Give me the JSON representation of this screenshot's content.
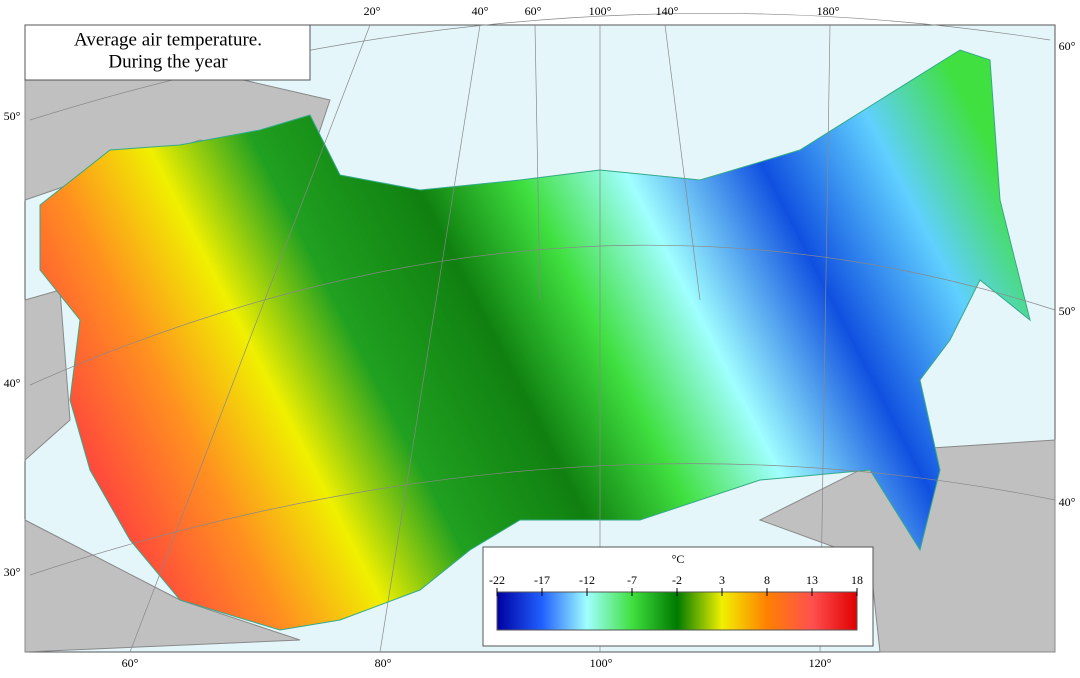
{
  "title": [
    "Average air temperature.",
    "During the year"
  ],
  "graticule": {
    "top": [
      "20°",
      "40°",
      "60°",
      "100°",
      "140°",
      "180°"
    ],
    "left": [
      "50°",
      "40°",
      "30°"
    ],
    "right": [
      "60°",
      "50°",
      "40°"
    ],
    "bottom": [
      "60°",
      "80°",
      "100°",
      "120°"
    ]
  },
  "legend": {
    "unit": "°C",
    "range": [
      -22,
      18
    ],
    "ticks": [
      -22,
      -17,
      -12,
      -7,
      -2,
      3,
      8,
      13,
      18
    ],
    "colors": [
      "#0000a0",
      "#2060ff",
      "#a0ffff",
      "#40e040",
      "#007a00",
      "#f0f000",
      "#ff8000",
      "#ff5050",
      "#e00000"
    ]
  }
}
